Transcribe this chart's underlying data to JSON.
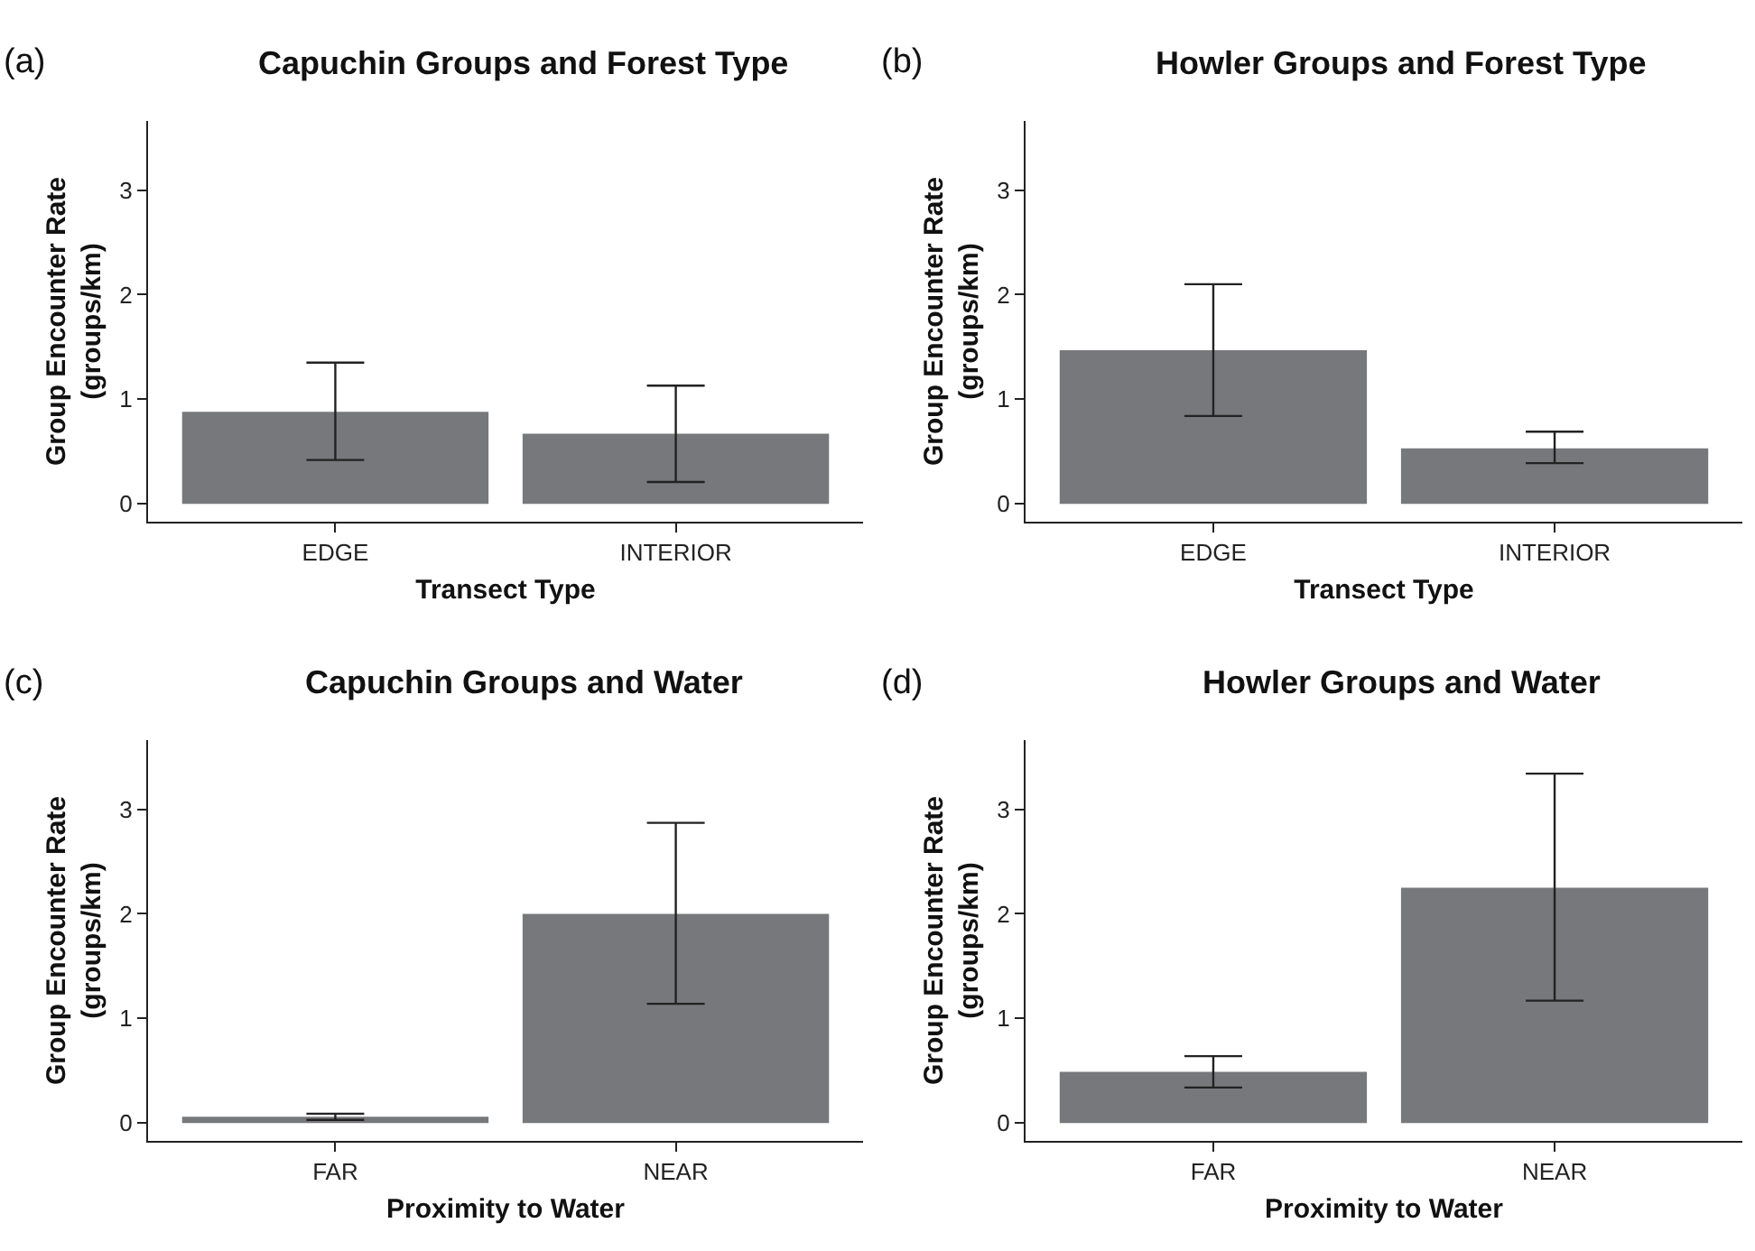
{
  "chart_data": [
    {
      "type": "bar",
      "title": "Capuchin Groups and Forest Type",
      "annotations": [
        "(a)"
      ],
      "xlabel": "Transect Type",
      "ylabel": "Group Encounter Rate\n(groups/km)",
      "categories": [
        "EDGE",
        "INTERIOR"
      ],
      "values": [
        0.88,
        0.67
      ],
      "errors": [
        [
          0.42,
          1.35
        ],
        [
          0.21,
          1.13
        ]
      ],
      "color": "#77787b",
      "ylim": [
        -0.17,
        3.66
      ],
      "yticks": [
        0,
        1,
        2,
        3
      ]
    },
    {
      "type": "bar",
      "title": "Howler Groups and Forest Type",
      "annotations": [
        "(b)"
      ],
      "xlabel": "Transect Type",
      "ylabel": "Group Encounter Rate\n(groups/km)",
      "categories": [
        "EDGE",
        "INTERIOR"
      ],
      "values": [
        1.47,
        0.53
      ],
      "errors": [
        [
          0.84,
          2.1
        ],
        [
          0.39,
          0.69
        ]
      ],
      "color": "#77787b",
      "ylim": [
        -0.17,
        3.66
      ],
      "yticks": [
        0,
        1,
        2,
        3
      ]
    },
    {
      "type": "bar",
      "title": "Capuchin Groups and Water",
      "annotations": [
        "(c)"
      ],
      "xlabel": "Proximity to Water",
      "ylabel": "Group Encounter Rate\n(groups/km)",
      "categories": [
        "FAR",
        "NEAR"
      ],
      "values": [
        0.06,
        2.0
      ],
      "errors": [
        [
          0.03,
          0.09
        ],
        [
          1.14,
          2.87
        ]
      ],
      "color": "#77787b",
      "ylim": [
        -0.17,
        3.66
      ],
      "yticks": [
        0,
        1,
        2,
        3
      ]
    },
    {
      "type": "bar",
      "title": "Howler Groups and Water",
      "annotations": [
        "(d)"
      ],
      "xlabel": "Proximity to Water",
      "ylabel": "Group Encounter Rate\n(groups/km)",
      "categories": [
        "FAR",
        "NEAR"
      ],
      "values": [
        0.49,
        2.25
      ],
      "errors": [
        [
          0.34,
          0.64
        ],
        [
          1.17,
          3.34
        ]
      ],
      "color": "#77787b",
      "ylim": [
        -0.17,
        3.66
      ],
      "yticks": [
        0,
        1,
        2,
        3
      ]
    }
  ]
}
